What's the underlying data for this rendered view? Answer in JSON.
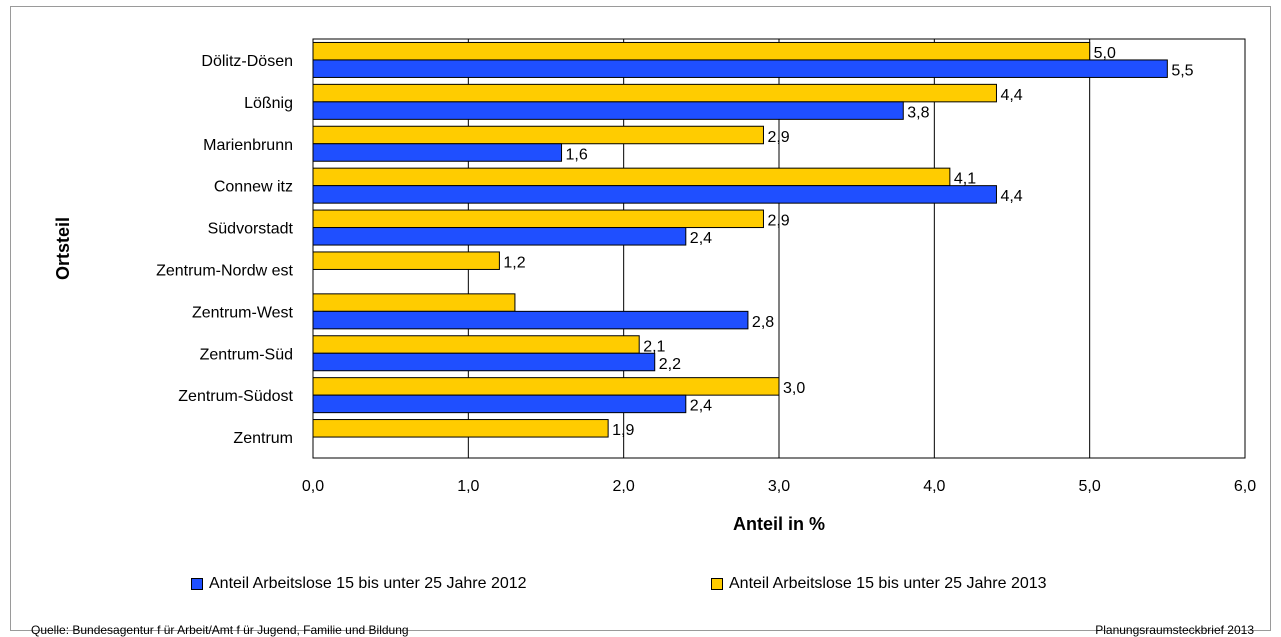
{
  "chart_data": {
    "type": "bar",
    "orientation": "horizontal",
    "categories": [
      "Dölitz-Dösen",
      "Lößnig",
      "Marienbrunn",
      "Connew itz",
      "Südvorstadt",
      "Zentrum-Nordw est",
      "Zentrum-West",
      "Zentrum-Süd",
      "Zentrum-Südost",
      "Zentrum"
    ],
    "series": [
      {
        "name": "Anteil Arbeitslose 15 bis unter 25 Jahre 2013",
        "color": "#ffcc00",
        "values": [
          5.0,
          4.4,
          2.9,
          4.1,
          2.9,
          1.2,
          1.3,
          2.1,
          3.0,
          1.9
        ],
        "labels": [
          "5,0",
          "4,4",
          "2,9",
          "4,1",
          "2,9",
          "1,2",
          "",
          "2,1",
          "3,0",
          "1,9"
        ]
      },
      {
        "name": "Anteil Arbeitslose 15 bis unter 25 Jahre 2012",
        "color": "#1f4fff",
        "values": [
          5.5,
          3.8,
          1.6,
          4.4,
          2.4,
          null,
          2.8,
          2.2,
          2.4,
          null
        ],
        "labels": [
          "5,5",
          "3,8",
          "1,6",
          "4,4",
          "2,4",
          "",
          "2,8",
          "2,2",
          "2,4",
          ""
        ]
      }
    ],
    "xlabel": "Anteil in %",
    "ylabel": "Ortsteil",
    "xlim": [
      0,
      6
    ],
    "xticks": [
      0,
      1,
      2,
      3,
      4,
      5,
      6
    ],
    "xtick_labels": [
      "0,0",
      "1,0",
      "2,0",
      "3,0",
      "4,0",
      "5,0",
      "6,0"
    ],
    "grid": true,
    "legend_position": "bottom"
  },
  "legend": [
    {
      "label": "Anteil Arbeitslose 15 bis unter 25 Jahre 2012",
      "color": "#1f4fff"
    },
    {
      "label": "Anteil Arbeitslose 15 bis unter 25 Jahre 2013",
      "color": "#ffcc00"
    }
  ],
  "footer": {
    "source": "Quelle: Bundesagentur f ür Arbeit/Amt f ür Jugend, Familie und Bildung",
    "brief": "Planungsraumsteckbrief 2013"
  }
}
